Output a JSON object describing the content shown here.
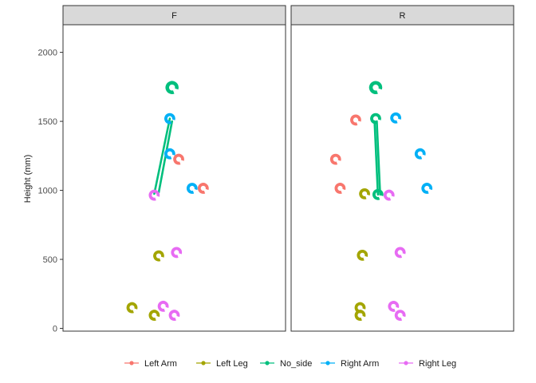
{
  "chart_data": {
    "type": "scatter",
    "ylabel": "Height (mm)",
    "ylim": [
      -20,
      2200
    ],
    "y_ticks": [
      0,
      500,
      1000,
      1500,
      2000
    ],
    "tick_labels": [
      "0",
      "500",
      "1000",
      "1500",
      "2000"
    ],
    "x_range": [
      0,
      10
    ],
    "panels": [
      "F",
      "R"
    ],
    "legend": {
      "placement": "bottom",
      "items": [
        {
          "key": "left_arm",
          "label": "Left Arm",
          "color": "#F8766D"
        },
        {
          "key": "left_leg",
          "label": "Left Leg",
          "color": "#A3A500"
        },
        {
          "key": "no_side",
          "label": "No_side",
          "color": "#00BF7D"
        },
        {
          "key": "right_arm",
          "label": "Right Arm",
          "color": "#00B0F6"
        },
        {
          "key": "right_leg",
          "label": "Right Leg",
          "color": "#E76BF3"
        }
      ]
    },
    "points": {
      "F": [
        {
          "group": "no_side",
          "x": 4.9,
          "y": 1745
        },
        {
          "group": "right_arm",
          "x": 4.8,
          "y": 1520
        },
        {
          "group": "right_arm",
          "x": 4.8,
          "y": 1265
        },
        {
          "group": "left_arm",
          "x": 5.2,
          "y": 1225
        },
        {
          "group": "right_arm",
          "x": 5.8,
          "y": 1015
        },
        {
          "group": "left_arm",
          "x": 6.3,
          "y": 1015
        },
        {
          "group": "right_leg",
          "x": 4.1,
          "y": 965
        },
        {
          "group": "left_leg",
          "x": 4.3,
          "y": 525
        },
        {
          "group": "right_leg",
          "x": 5.1,
          "y": 550
        },
        {
          "group": "left_leg",
          "x": 3.1,
          "y": 150
        },
        {
          "group": "right_leg",
          "x": 4.5,
          "y": 160
        },
        {
          "group": "left_leg",
          "x": 4.1,
          "y": 95
        },
        {
          "group": "right_leg",
          "x": 5.0,
          "y": 95
        }
      ],
      "R": [
        {
          "group": "no_side",
          "x": 3.8,
          "y": 1745
        },
        {
          "group": "left_arm",
          "x": 2.9,
          "y": 1510
        },
        {
          "group": "no_side",
          "x": 3.8,
          "y": 1520
        },
        {
          "group": "right_arm",
          "x": 4.7,
          "y": 1525
        },
        {
          "group": "left_arm",
          "x": 2.0,
          "y": 1225
        },
        {
          "group": "right_arm",
          "x": 5.8,
          "y": 1265
        },
        {
          "group": "left_arm",
          "x": 2.2,
          "y": 1015
        },
        {
          "group": "left_leg",
          "x": 3.3,
          "y": 975
        },
        {
          "group": "no_side",
          "x": 3.9,
          "y": 970
        },
        {
          "group": "right_leg",
          "x": 4.4,
          "y": 965
        },
        {
          "group": "right_arm",
          "x": 6.1,
          "y": 1015
        },
        {
          "group": "left_leg",
          "x": 3.2,
          "y": 530
        },
        {
          "group": "right_leg",
          "x": 4.9,
          "y": 550
        },
        {
          "group": "left_leg",
          "x": 3.1,
          "y": 150
        },
        {
          "group": "left_leg",
          "x": 3.1,
          "y": 95
        },
        {
          "group": "right_leg",
          "x": 4.6,
          "y": 160
        },
        {
          "group": "right_leg",
          "x": 4.9,
          "y": 95
        }
      ]
    },
    "lines": {
      "F": [
        {
          "group": "no_side",
          "points": [
            [
              4.8,
              1520
            ],
            [
              4.1,
              975
            ]
          ]
        },
        {
          "group": "no_side",
          "points": [
            [
              4.9,
              1500
            ],
            [
              4.3,
              985
            ]
          ]
        }
      ],
      "R": [
        {
          "group": "no_side",
          "points": [
            [
              3.75,
              1500
            ],
            [
              3.9,
              970
            ]
          ]
        },
        {
          "group": "no_side",
          "points": [
            [
              3.85,
              1500
            ],
            [
              4.0,
              970
            ]
          ]
        }
      ]
    }
  }
}
